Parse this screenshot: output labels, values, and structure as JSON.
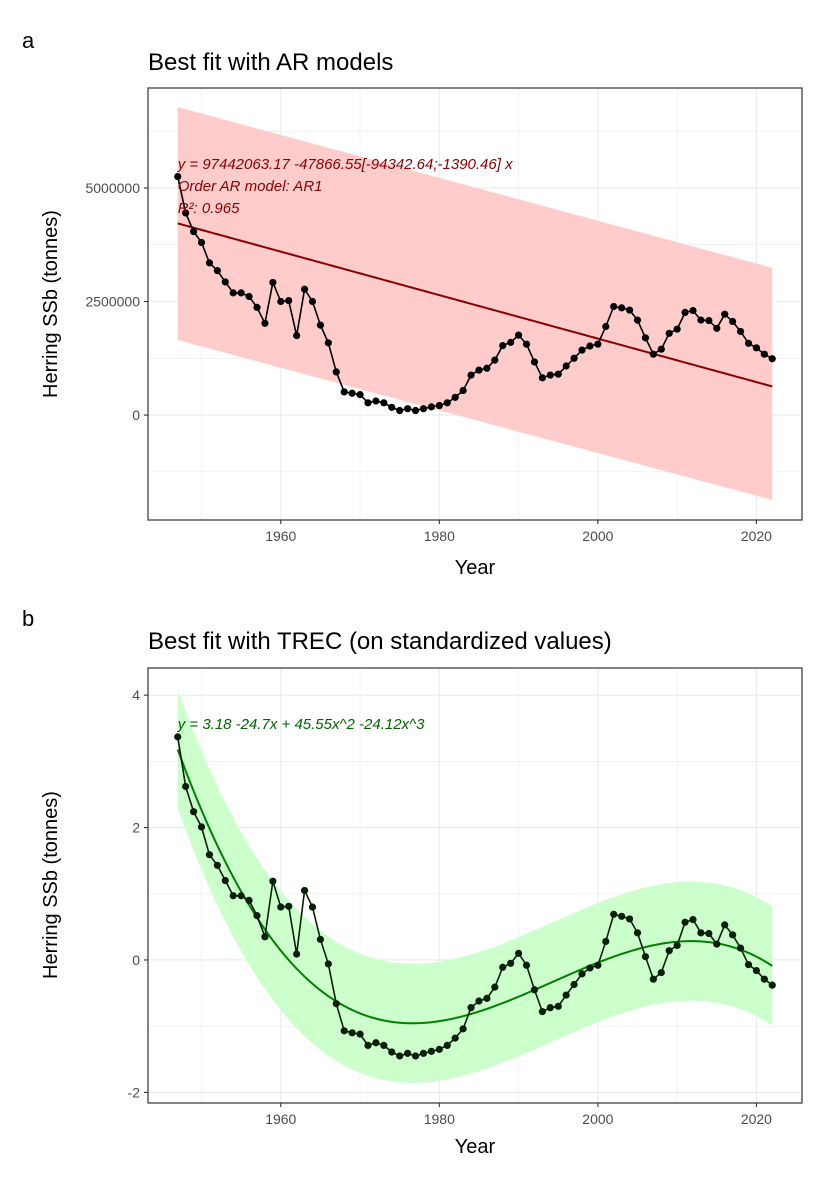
{
  "chart_data": [
    {
      "tag": "a",
      "type": "line",
      "title": "Best fit with AR models",
      "xlabel": "Year",
      "ylabel": "Herring SSb (tonnes)",
      "xlim": [
        1943.25,
        2025.75
      ],
      "ylim": [
        -2310000,
        7200000
      ],
      "xticks": [
        1960,
        1980,
        2000,
        2020
      ],
      "yticks": [
        0,
        2500000,
        5000000
      ],
      "ytick_labels": [
        "0",
        "2500000",
        "5000000"
      ],
      "grid": true,
      "x": [
        1947,
        1948,
        1949,
        1950,
        1951,
        1952,
        1953,
        1954,
        1955,
        1956,
        1957,
        1958,
        1959,
        1960,
        1961,
        1962,
        1963,
        1964,
        1965,
        1966,
        1967,
        1968,
        1969,
        1970,
        1971,
        1972,
        1973,
        1974,
        1975,
        1976,
        1977,
        1978,
        1979,
        1980,
        1981,
        1982,
        1983,
        1984,
        1985,
        1986,
        1987,
        1988,
        1989,
        1990,
        1991,
        1992,
        1993,
        1994,
        1995,
        1996,
        1997,
        1998,
        1999,
        2000,
        2001,
        2002,
        2003,
        2004,
        2005,
        2006,
        2007,
        2008,
        2009,
        2010,
        2011,
        2012,
        2013,
        2014,
        2015,
        2016,
        2017,
        2018,
        2019,
        2020,
        2021,
        2022
      ],
      "values": [
        5250000,
        4450000,
        4040000,
        3800000,
        3350000,
        3180000,
        2930000,
        2690000,
        2690000,
        2610000,
        2370000,
        2020000,
        2920000,
        2500000,
        2520000,
        1750000,
        2770000,
        2500000,
        1980000,
        1590000,
        950000,
        510000,
        480000,
        450000,
        270000,
        310000,
        270000,
        170000,
        100000,
        140000,
        100000,
        140000,
        180000,
        210000,
        270000,
        390000,
        540000,
        880000,
        990000,
        1030000,
        1210000,
        1530000,
        1600000,
        1760000,
        1560000,
        1170000,
        820000,
        880000,
        900000,
        1080000,
        1250000,
        1430000,
        1520000,
        1560000,
        1950000,
        2390000,
        2360000,
        2310000,
        2090000,
        1700000,
        1340000,
        1450000,
        1800000,
        1890000,
        2260000,
        2300000,
        2090000,
        2080000,
        1910000,
        2220000,
        2060000,
        1840000,
        1580000,
        1480000,
        1340000,
        1240000
      ],
      "fit": {
        "type": "linear",
        "x_range": [
          1947,
          2022
        ],
        "y_start": 4220000,
        "y_end": 630000,
        "ci_upper": [
          6780000,
          3240000
        ],
        "ci_lower": [
          1650000,
          -1870000
        ]
      },
      "annotations": [
        "y = 97442063.17  -47866.55[-94342.64;-1390.46] x",
        "Order AR model: AR1",
        "R²: 0.965"
      ],
      "colors": {
        "points": "#000000",
        "fit_line": "#8b0000",
        "ribbon": "#ffcccc",
        "annotation": "#8b0000"
      }
    },
    {
      "tag": "b",
      "type": "line",
      "title": "Best fit with TREC (on standardized values)",
      "xlabel": "Year",
      "ylabel": "Herring SSb (tonnes)",
      "xlim": [
        1943.25,
        2025.75
      ],
      "ylim": [
        -2.16,
        4.41
      ],
      "xticks": [
        1960,
        1980,
        2000,
        2020
      ],
      "yticks": [
        -2,
        0,
        2,
        4
      ],
      "ytick_labels": [
        "-2",
        "0",
        "2",
        "4"
      ],
      "grid": true,
      "x": [
        1947,
        1948,
        1949,
        1950,
        1951,
        1952,
        1953,
        1954,
        1955,
        1956,
        1957,
        1958,
        1959,
        1960,
        1961,
        1962,
        1963,
        1964,
        1965,
        1966,
        1967,
        1968,
        1969,
        1970,
        1971,
        1972,
        1973,
        1974,
        1975,
        1976,
        1977,
        1978,
        1979,
        1980,
        1981,
        1982,
        1983,
        1984,
        1985,
        1986,
        1987,
        1988,
        1989,
        1990,
        1991,
        1992,
        1993,
        1994,
        1995,
        1996,
        1997,
        1998,
        1999,
        2000,
        2001,
        2002,
        2003,
        2004,
        2005,
        2006,
        2007,
        2008,
        2009,
        2010,
        2011,
        2012,
        2013,
        2014,
        2015,
        2016,
        2017,
        2018,
        2019,
        2020,
        2021,
        2022
      ],
      "values": [
        3.37,
        2.62,
        2.24,
        2.01,
        1.59,
        1.43,
        1.2,
        0.97,
        0.97,
        0.9,
        0.67,
        0.35,
        1.19,
        0.8,
        0.81,
        0.09,
        1.05,
        0.8,
        0.31,
        -0.06,
        -0.66,
        -1.07,
        -1.1,
        -1.12,
        -1.29,
        -1.25,
        -1.29,
        -1.39,
        -1.45,
        -1.41,
        -1.45,
        -1.41,
        -1.38,
        -1.35,
        -1.29,
        -1.18,
        -1.04,
        -0.72,
        -0.62,
        -0.58,
        -0.41,
        -0.11,
        -0.05,
        0.1,
        -0.08,
        -0.45,
        -0.78,
        -0.72,
        -0.7,
        -0.53,
        -0.37,
        -0.21,
        -0.12,
        -0.08,
        0.28,
        0.69,
        0.66,
        0.62,
        0.41,
        0.05,
        -0.29,
        -0.19,
        0.14,
        0.22,
        0.57,
        0.61,
        0.41,
        0.4,
        0.24,
        0.53,
        0.38,
        0.18,
        -0.07,
        -0.16,
        -0.29,
        -0.38
      ],
      "fit": {
        "type": "cubic",
        "x_range": [
          1947,
          2022
        ],
        "coefficients": [
          3.18,
          -24.7,
          45.55,
          -24.12
        ],
        "ci_halfwidth": 0.9
      },
      "annotations": [
        "y =  3.18   -24.7x  + 45.55x^2   -24.12x^3"
      ],
      "colors": {
        "points": "#0a1f0a",
        "fit_line": "#008000",
        "ribbon": "#ccffcc",
        "annotation": "#006400"
      }
    }
  ]
}
